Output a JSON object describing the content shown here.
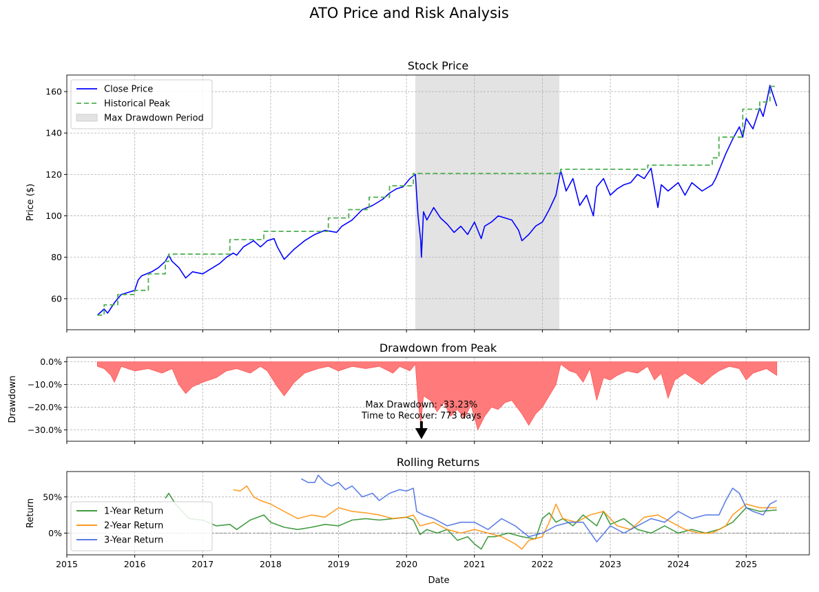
{
  "figure": {
    "title": "ATO Price and Risk Analysis",
    "xlabel": "Date"
  },
  "chart_data": [
    {
      "type": "line",
      "title": "Stock Price",
      "xlabel": "",
      "ylabel": "Price ($)",
      "xlim": [
        2015.0,
        2025.93
      ],
      "ylim": [
        45,
        168
      ],
      "yticks": [
        60,
        80,
        100,
        120,
        140,
        160
      ],
      "xticks": [
        2015,
        2016,
        2017,
        2018,
        2019,
        2020,
        2021,
        2022,
        2023,
        2024,
        2025
      ],
      "grid": true,
      "legend_position": "top-left",
      "legend": [
        "Close Price",
        "Historical Peak",
        "Max Drawdown Period"
      ],
      "max_drawdown_period": {
        "start": 2020.13,
        "end": 2022.25
      },
      "series": [
        {
          "name": "Close Price",
          "color": "#0000ff",
          "x": [
            2015.45,
            2015.55,
            2015.6,
            2015.7,
            2015.8,
            2015.9,
            2016.0,
            2016.05,
            2016.1,
            2016.25,
            2016.35,
            2016.45,
            2016.5,
            2016.55,
            2016.65,
            2016.75,
            2016.85,
            2017.0,
            2017.15,
            2017.25,
            2017.35,
            2017.45,
            2017.5,
            2017.6,
            2017.75,
            2017.85,
            2017.95,
            2018.05,
            2018.1,
            2018.2,
            2018.35,
            2018.5,
            2018.65,
            2018.8,
            2018.97,
            2019.05,
            2019.2,
            2019.35,
            2019.5,
            2019.65,
            2019.75,
            2019.85,
            2019.95,
            2020.05,
            2020.13,
            2020.17,
            2020.21,
            2020.22,
            2020.25,
            2020.3,
            2020.4,
            2020.5,
            2020.6,
            2020.7,
            2020.8,
            2020.9,
            2021.0,
            2021.1,
            2021.15,
            2021.25,
            2021.35,
            2021.45,
            2021.55,
            2021.65,
            2021.7,
            2021.8,
            2021.9,
            2022.0,
            2022.1,
            2022.2,
            2022.27,
            2022.35,
            2022.45,
            2022.55,
            2022.65,
            2022.75,
            2022.8,
            2022.9,
            2023.0,
            2023.1,
            2023.2,
            2023.3,
            2023.4,
            2023.5,
            2023.6,
            2023.7,
            2023.75,
            2023.85,
            2024.0,
            2024.1,
            2024.2,
            2024.35,
            2024.5,
            2024.55,
            2024.6,
            2024.7,
            2024.8,
            2024.9,
            2024.95,
            2025.0,
            2025.1,
            2025.2,
            2025.25,
            2025.3,
            2025.35,
            2025.4,
            2025.45
          ],
          "y": [
            52,
            55,
            53,
            58,
            62,
            63,
            64,
            69,
            71,
            73,
            75,
            78,
            81,
            78,
            75,
            70,
            73,
            72,
            75,
            77,
            80,
            82,
            81,
            85,
            88,
            85,
            88,
            89,
            85,
            79,
            84,
            88,
            91,
            93,
            92,
            95,
            98,
            103,
            105,
            108,
            111,
            113,
            114,
            118,
            120,
            100,
            88,
            80,
            102,
            98,
            104,
            99,
            96,
            92,
            95,
            91,
            97,
            89,
            95,
            97,
            100,
            99,
            98,
            93,
            88,
            91,
            95,
            97,
            103,
            110,
            122,
            112,
            118,
            105,
            110,
            100,
            114,
            118,
            110,
            113,
            115,
            116,
            120,
            118,
            123,
            104,
            115,
            112,
            116,
            110,
            116,
            112,
            115,
            118,
            122,
            130,
            137,
            143,
            138,
            147,
            142,
            152,
            148,
            155,
            163,
            158,
            153
          ]
        },
        {
          "name": "Historical Peak",
          "color": "#4caf50",
          "x": [
            2015.45,
            2015.55,
            2015.55,
            2015.75,
            2015.75,
            2016.0,
            2016.0,
            2016.2,
            2016.2,
            2016.45,
            2016.45,
            2016.5,
            2016.5,
            2017.4,
            2017.4,
            2017.9,
            2017.9,
            2018.85,
            2018.85,
            2019.15,
            2019.15,
            2019.45,
            2019.45,
            2019.75,
            2019.75,
            2020.1,
            2020.1,
            2022.27,
            2022.27,
            2023.55,
            2023.55,
            2024.5,
            2024.5,
            2024.6,
            2024.6,
            2024.95,
            2024.95,
            2025.2,
            2025.2,
            2025.35,
            2025.35,
            2025.45
          ],
          "y": [
            52,
            52,
            57,
            57,
            62,
            62,
            64,
            64,
            72,
            72,
            78,
            78,
            81.5,
            81.5,
            88.5,
            88.5,
            92.5,
            92.5,
            99,
            99,
            103,
            103,
            109,
            109,
            114.5,
            114.5,
            120.5,
            120.5,
            122.5,
            122.5,
            124.5,
            124.5,
            128,
            128,
            138,
            138,
            151.5,
            151.5,
            155,
            155,
            162.5,
            162.5
          ]
        }
      ]
    },
    {
      "type": "area",
      "title": "Drawdown from Peak",
      "xlabel": "",
      "ylabel": "Drawdown",
      "xlim": [
        2015.0,
        2025.93
      ],
      "ylim": [
        -35,
        2
      ],
      "yticks": [
        0,
        -10,
        -20,
        -30
      ],
      "ytick_labels": [
        "0.0%",
        "−10.0%",
        "−20.0%",
        "−30.0%"
      ],
      "xticks": [
        2015,
        2016,
        2017,
        2018,
        2019,
        2020,
        2021,
        2022,
        2023,
        2024,
        2025
      ],
      "grid": true,
      "annotation": {
        "line1": "Max Drawdown: -33.23%",
        "line2": "Time to Recover: 773 days",
        "x": 2020.22,
        "y": -33.23
      },
      "series": [
        {
          "name": "Drawdown",
          "color": "#ff0000",
          "x": [
            2015.45,
            2015.55,
            2015.65,
            2015.7,
            2015.8,
            2016.0,
            2016.2,
            2016.4,
            2016.55,
            2016.65,
            2016.75,
            2016.85,
            2017.0,
            2017.2,
            2017.35,
            2017.5,
            2017.7,
            2017.85,
            2017.95,
            2018.1,
            2018.2,
            2018.35,
            2018.5,
            2018.7,
            2018.85,
            2019.0,
            2019.2,
            2019.4,
            2019.6,
            2019.8,
            2019.9,
            2020.05,
            2020.13,
            2020.17,
            2020.21,
            2020.25,
            2020.35,
            2020.45,
            2020.55,
            2020.65,
            2020.75,
            2020.85,
            2020.95,
            2021.05,
            2021.15,
            2021.25,
            2021.35,
            2021.45,
            2021.55,
            2021.7,
            2021.8,
            2021.9,
            2022.0,
            2022.1,
            2022.2,
            2022.27,
            2022.4,
            2022.5,
            2022.6,
            2022.7,
            2022.8,
            2022.9,
            2023.0,
            2023.1,
            2023.25,
            2023.4,
            2023.55,
            2023.65,
            2023.75,
            2023.85,
            2023.95,
            2024.1,
            2024.2,
            2024.35,
            2024.5,
            2024.6,
            2024.75,
            2024.9,
            2025.0,
            2025.1,
            2025.2,
            2025.3,
            2025.35,
            2025.45
          ],
          "y": [
            -2,
            -3,
            -6,
            -9,
            -2,
            -4,
            -3,
            -5,
            -3,
            -10,
            -14,
            -11,
            -9,
            -7,
            -4,
            -3,
            -5,
            -2,
            -4,
            -11,
            -15,
            -9,
            -5,
            -3,
            -2,
            -4,
            -2,
            -3,
            -2,
            -5,
            -2,
            -4,
            -1,
            -17,
            -28,
            -15,
            -17,
            -22,
            -18,
            -24,
            -21,
            -25,
            -19,
            -30,
            -24,
            -20,
            -21,
            -18,
            -17,
            -23,
            -28,
            -23,
            -20,
            -15,
            -10,
            -1,
            -4,
            -5,
            -9,
            -3,
            -17,
            -7,
            -8,
            -6,
            -4,
            -5,
            -2,
            -8,
            -5,
            -16,
            -8,
            -5,
            -7,
            -10,
            -6,
            -4,
            -2,
            -3,
            -8,
            -5,
            -4,
            -3,
            -4,
            -6
          ]
        }
      ]
    },
    {
      "type": "line",
      "title": "Rolling Returns",
      "xlabel": "Date",
      "ylabel": "Return",
      "xlim": [
        2015.0,
        2025.93
      ],
      "ylim": [
        -30,
        85
      ],
      "yticks": [
        0,
        50
      ],
      "ytick_labels": [
        "0%",
        "50%"
      ],
      "xticks": [
        2015,
        2016,
        2017,
        2018,
        2019,
        2020,
        2021,
        2022,
        2023,
        2024,
        2025
      ],
      "grid": true,
      "legend_position": "bottom-left",
      "series": [
        {
          "name": "1-Year Return",
          "color": "#228b22",
          "x": [
            2016.45,
            2016.5,
            2016.6,
            2016.7,
            2016.8,
            2017.0,
            2017.2,
            2017.4,
            2017.5,
            2017.7,
            2017.9,
            2018.0,
            2018.2,
            2018.4,
            2018.6,
            2018.8,
            2019.0,
            2019.2,
            2019.4,
            2019.6,
            2019.8,
            2020.0,
            2020.1,
            2020.2,
            2020.3,
            2020.45,
            2020.6,
            2020.75,
            2020.9,
            2021.0,
            2021.1,
            2021.2,
            2021.3,
            2021.5,
            2021.7,
            2021.9,
            2022.0,
            2022.1,
            2022.2,
            2022.3,
            2022.45,
            2022.6,
            2022.8,
            2022.9,
            2023.0,
            2023.2,
            2023.4,
            2023.6,
            2023.8,
            2024.0,
            2024.2,
            2024.4,
            2024.6,
            2024.8,
            2025.0,
            2025.2,
            2025.45
          ],
          "y": [
            48,
            55,
            40,
            30,
            20,
            18,
            10,
            12,
            5,
            18,
            25,
            15,
            8,
            5,
            8,
            12,
            10,
            18,
            20,
            18,
            20,
            22,
            18,
            -2,
            5,
            0,
            5,
            -10,
            -5,
            -15,
            -22,
            -5,
            -5,
            0,
            -5,
            -8,
            20,
            28,
            15,
            20,
            10,
            25,
            10,
            30,
            12,
            20,
            5,
            0,
            10,
            0,
            5,
            0,
            5,
            15,
            35,
            30,
            32
          ]
        },
        {
          "name": "2-Year Return",
          "color": "#ff8c00",
          "x": [
            2017.45,
            2017.55,
            2017.65,
            2017.75,
            2017.85,
            2018.0,
            2018.2,
            2018.4,
            2018.6,
            2018.8,
            2019.0,
            2019.2,
            2019.4,
            2019.6,
            2019.8,
            2020.0,
            2020.1,
            2020.2,
            2020.4,
            2020.6,
            2020.8,
            2021.0,
            2021.2,
            2021.4,
            2021.6,
            2021.7,
            2021.8,
            2022.0,
            2022.1,
            2022.2,
            2022.3,
            2022.5,
            2022.7,
            2022.9,
            2023.1,
            2023.3,
            2023.5,
            2023.7,
            2023.9,
            2024.1,
            2024.3,
            2024.5,
            2024.7,
            2024.8,
            2025.0,
            2025.2,
            2025.45
          ],
          "y": [
            60,
            58,
            65,
            50,
            45,
            40,
            30,
            20,
            25,
            22,
            35,
            30,
            28,
            25,
            20,
            22,
            25,
            10,
            15,
            5,
            0,
            5,
            0,
            -5,
            -15,
            -22,
            -10,
            -5,
            15,
            40,
            20,
            15,
            25,
            30,
            10,
            5,
            22,
            25,
            15,
            5,
            0,
            0,
            10,
            25,
            40,
            35,
            35
          ]
        },
        {
          "name": "3-Year Return",
          "color": "#4169e1",
          "x": [
            2018.45,
            2018.55,
            2018.65,
            2018.7,
            2018.8,
            2018.9,
            2019.0,
            2019.1,
            2019.2,
            2019.35,
            2019.5,
            2019.6,
            2019.75,
            2019.9,
            2020.0,
            2020.1,
            2020.15,
            2020.25,
            2020.4,
            2020.6,
            2020.8,
            2021.0,
            2021.2,
            2021.4,
            2021.6,
            2021.8,
            2022.0,
            2022.2,
            2022.4,
            2022.6,
            2022.8,
            2023.0,
            2023.2,
            2023.4,
            2023.6,
            2023.8,
            2024.0,
            2024.2,
            2024.4,
            2024.6,
            2024.7,
            2024.8,
            2024.9,
            2025.0,
            2025.1,
            2025.25,
            2025.35,
            2025.45
          ],
          "y": [
            75,
            70,
            70,
            80,
            70,
            65,
            70,
            60,
            65,
            50,
            55,
            45,
            55,
            60,
            58,
            62,
            30,
            25,
            20,
            10,
            15,
            15,
            5,
            20,
            10,
            -5,
            0,
            10,
            15,
            15,
            -12,
            10,
            0,
            10,
            20,
            15,
            30,
            20,
            25,
            25,
            45,
            62,
            55,
            35,
            30,
            25,
            40,
            45
          ]
        }
      ]
    }
  ]
}
